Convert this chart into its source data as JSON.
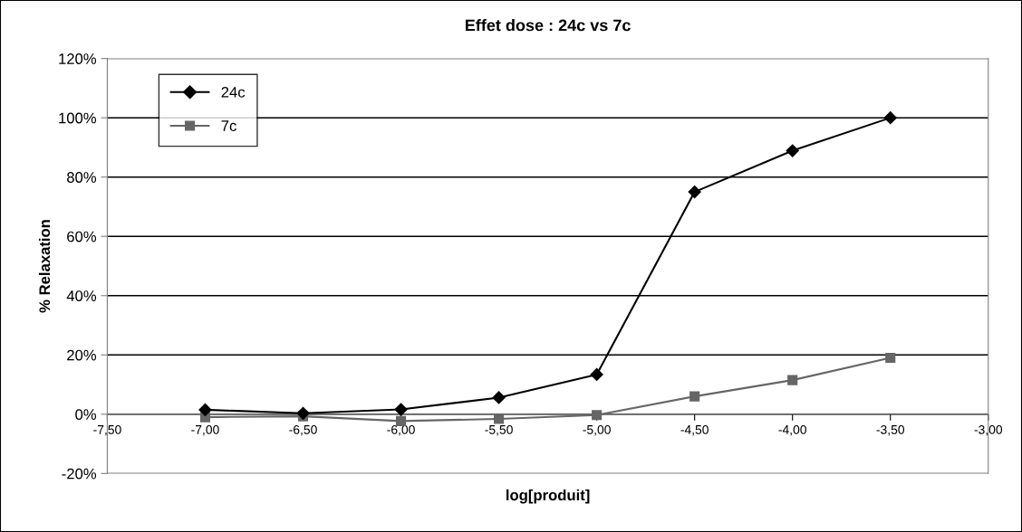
{
  "chart_data": {
    "type": "line",
    "title": "Effet dose : 24c vs 7c",
    "xlabel": "log[produit]",
    "ylabel": "% Relaxation",
    "x": [
      -7.0,
      -6.5,
      -6.0,
      -5.5,
      -5.0,
      -4.5,
      -4.0,
      -3.5
    ],
    "series": [
      {
        "name": "24c",
        "color": "#000000",
        "marker": "diamond",
        "values": [
          1.5,
          0.3,
          1.6,
          5.6,
          13.4,
          75,
          88.9,
          100
        ]
      },
      {
        "name": "7c",
        "color": "#666666",
        "marker": "square",
        "values": [
          -1,
          -0.7,
          -2.3,
          -1.6,
          -0.3,
          6,
          11.5,
          19
        ]
      }
    ],
    "xlim": [
      -7.5,
      -3.0
    ],
    "xticks": [
      {
        "value": -7.5,
        "label": "-7,50"
      },
      {
        "value": -7.0,
        "label": "-7,00"
      },
      {
        "value": -6.5,
        "label": "-6,50"
      },
      {
        "value": -6.0,
        "label": "-6,00"
      },
      {
        "value": -5.5,
        "label": "-5,50"
      },
      {
        "value": -5.0,
        "label": "-5,00"
      },
      {
        "value": -4.5,
        "label": "-4,50"
      },
      {
        "value": -4.0,
        "label": "-4,00"
      },
      {
        "value": -3.5,
        "label": "-3,50"
      },
      {
        "value": -3.0,
        "label": "-3,00"
      }
    ],
    "ylim": [
      -20,
      120
    ],
    "yticks": [
      {
        "value": -20,
        "label": "-20%"
      },
      {
        "value": 0,
        "label": "0%"
      },
      {
        "value": 20,
        "label": "20%"
      },
      {
        "value": 40,
        "label": "40%"
      },
      {
        "value": 60,
        "label": "60%"
      },
      {
        "value": 80,
        "label": "80%"
      },
      {
        "value": 100,
        "label": "100%"
      },
      {
        "value": 120,
        "label": "120%"
      }
    ],
    "grid": "y",
    "legend": "top left",
    "line_style": "solid"
  }
}
